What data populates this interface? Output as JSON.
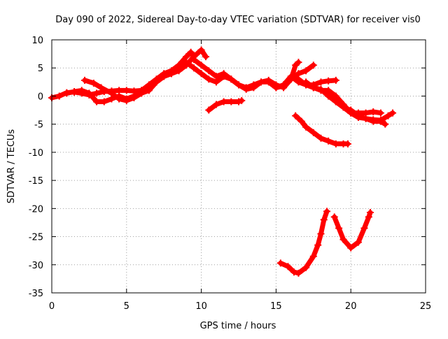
{
  "chart_data": {
    "type": "scatter",
    "title": "Day 090 of 2022, Sidereal Day-to-day VTEC variation (SDTVAR) for receiver vis0",
    "xlabel": "GPS time / hours",
    "ylabel": "SDTVAR / TECUs",
    "xlim": [
      0,
      25
    ],
    "ylim": [
      -35,
      10
    ],
    "x_ticks": [
      0,
      5,
      10,
      15,
      20,
      25
    ],
    "y_ticks": [
      10,
      5,
      0,
      -5,
      -10,
      -15,
      -20,
      -25,
      -30,
      -35
    ],
    "x_tick_labels": [
      "0",
      "5",
      "10",
      "15",
      "20",
      "25"
    ],
    "y_tick_labels": [
      "10",
      "5",
      "0",
      "-5",
      "-10",
      "-15",
      "-20",
      "-25",
      "-30",
      "-35"
    ],
    "grid": true,
    "marker": "plus",
    "color": "#ff0000",
    "series": [
      {
        "points": [
          [
            0,
            -0.3
          ],
          [
            0.5,
            0
          ],
          [
            1,
            0.6
          ],
          [
            1.5,
            0.7
          ],
          [
            2,
            0.5
          ],
          [
            2.5,
            0.2
          ],
          [
            3,
            0.5
          ],
          [
            3.5,
            0.8
          ],
          [
            4,
            0.9
          ],
          [
            4.5,
            1
          ],
          [
            5,
            1
          ],
          [
            5.5,
            0.9
          ],
          [
            6,
            1
          ]
        ]
      },
      {
        "points": [
          [
            1,
            0.5
          ],
          [
            1.5,
            0.8
          ],
          [
            2,
            1
          ],
          [
            2.5,
            0.5
          ],
          [
            3,
            -1
          ],
          [
            3.5,
            -1
          ],
          [
            4,
            -0.5
          ],
          [
            4.5,
            0
          ],
          [
            5,
            -0.5
          ],
          [
            5.5,
            0
          ],
          [
            6,
            0.5
          ],
          [
            6.5,
            1
          ],
          [
            7,
            2.5
          ],
          [
            7.5,
            3.5
          ],
          [
            8,
            4
          ],
          [
            8.5,
            4.5
          ],
          [
            9,
            5.5
          ],
          [
            9.5,
            7
          ],
          [
            10,
            8.2
          ],
          [
            10.3,
            7
          ]
        ]
      },
      {
        "points": [
          [
            2.2,
            2.8
          ],
          [
            2.8,
            2.3
          ],
          [
            3.3,
            1.5
          ],
          [
            4,
            0.5
          ],
          [
            4.5,
            -0.5
          ],
          [
            5,
            -0.8
          ],
          [
            5.5,
            -0.3
          ],
          [
            6,
            0.5
          ],
          [
            6.5,
            1.5
          ],
          [
            7,
            2.5
          ],
          [
            7.5,
            3.5
          ],
          [
            8,
            4
          ],
          [
            8.5,
            5.5
          ],
          [
            9,
            7
          ],
          [
            9.3,
            7.8
          ],
          [
            9.5,
            7.2
          ]
        ]
      },
      {
        "points": [
          [
            6,
            1
          ],
          [
            6.5,
            2
          ],
          [
            7,
            3
          ],
          [
            7.5,
            4
          ],
          [
            8,
            4.5
          ],
          [
            8.5,
            5.5
          ],
          [
            9,
            6
          ],
          [
            9.5,
            5
          ],
          [
            10,
            4
          ],
          [
            10.5,
            3
          ],
          [
            11,
            2.5
          ],
          [
            11.5,
            3.5
          ],
          [
            12,
            3
          ],
          [
            12.5,
            2
          ],
          [
            13,
            1.2
          ],
          [
            13.5,
            1.5
          ],
          [
            14,
            2.5
          ],
          [
            14.5,
            2.8
          ],
          [
            15,
            2
          ],
          [
            15.5,
            1.5
          ],
          [
            16,
            3
          ],
          [
            16.3,
            5.5
          ],
          [
            16.5,
            6
          ]
        ]
      },
      {
        "points": [
          [
            9.5,
            6.5
          ],
          [
            10,
            5.5
          ],
          [
            10.5,
            4.5
          ],
          [
            11,
            3.5
          ],
          [
            11.5,
            4
          ],
          [
            12,
            3
          ],
          [
            12.5,
            2
          ],
          [
            13,
            1.5
          ],
          [
            13.5,
            2
          ],
          [
            14,
            2.5
          ],
          [
            14.5,
            2.5
          ],
          [
            15,
            1.5
          ],
          [
            15.5,
            1.8
          ],
          [
            16,
            3
          ],
          [
            16.5,
            4
          ],
          [
            17,
            4.5
          ],
          [
            17.5,
            5.5
          ]
        ]
      },
      {
        "points": [
          [
            10.5,
            -2.5
          ],
          [
            11,
            -1.5
          ],
          [
            11.5,
            -1
          ],
          [
            12,
            -1
          ],
          [
            12.5,
            -1
          ],
          [
            12.7,
            -0.8
          ]
        ]
      },
      {
        "points": [
          [
            15,
            1.5
          ],
          [
            15.5,
            2
          ],
          [
            16,
            3.5
          ],
          [
            16.5,
            2.5
          ],
          [
            17,
            2
          ],
          [
            17.5,
            2
          ],
          [
            18,
            2.5
          ],
          [
            18.5,
            2.7
          ],
          [
            19,
            2.8
          ]
        ]
      },
      {
        "points": [
          [
            16.5,
            3
          ],
          [
            17,
            2
          ],
          [
            17.5,
            1.5
          ],
          [
            18,
            1
          ],
          [
            18.5,
            1
          ],
          [
            19,
            0
          ],
          [
            19.5,
            -1.5
          ],
          [
            20,
            -3
          ],
          [
            20.5,
            -3.8
          ],
          [
            21,
            -4
          ],
          [
            21.5,
            -4.2
          ],
          [
            22,
            -4.3
          ],
          [
            22.5,
            -3.5
          ],
          [
            22.8,
            -3
          ]
        ]
      },
      {
        "points": [
          [
            17,
            2.5
          ],
          [
            17.5,
            1.5
          ],
          [
            18,
            1.2
          ],
          [
            18.5,
            0
          ],
          [
            19,
            -1
          ],
          [
            19.5,
            -2
          ],
          [
            20,
            -3
          ],
          [
            20.5,
            -3
          ],
          [
            21,
            -3
          ],
          [
            21.5,
            -2.8
          ],
          [
            22,
            -3
          ]
        ]
      },
      {
        "points": [
          [
            18.5,
            0.5
          ],
          [
            19,
            -1
          ],
          [
            19.5,
            -2
          ],
          [
            20,
            -2.5
          ],
          [
            20.5,
            -3.5
          ],
          [
            21,
            -4
          ],
          [
            21.5,
            -4.5
          ],
          [
            22,
            -4.5
          ],
          [
            22.3,
            -5
          ]
        ]
      },
      {
        "points": [
          [
            16.3,
            -3.5
          ],
          [
            16.7,
            -4.5
          ],
          [
            17,
            -5.5
          ],
          [
            17.5,
            -6.5
          ],
          [
            18,
            -7.5
          ],
          [
            18.5,
            -8
          ],
          [
            19,
            -8.5
          ],
          [
            19.5,
            -8.5
          ],
          [
            19.8,
            -8.5
          ]
        ]
      },
      {
        "points": [
          [
            15.3,
            -29.7
          ],
          [
            15.8,
            -30.3
          ],
          [
            16.2,
            -31.3
          ],
          [
            16.5,
            -31.5
          ],
          [
            17,
            -30.5
          ],
          [
            17.5,
            -28.5
          ],
          [
            17.8,
            -26.5
          ],
          [
            18,
            -24.5
          ],
          [
            18.2,
            -22
          ],
          [
            18.4,
            -20.5
          ]
        ]
      },
      {
        "points": [
          [
            18.9,
            -21.5
          ],
          [
            19.2,
            -23.5
          ],
          [
            19.5,
            -25.5
          ],
          [
            20,
            -27
          ],
          [
            20.5,
            -26
          ],
          [
            20.9,
            -23.5
          ],
          [
            21.2,
            -21.5
          ],
          [
            21.3,
            -20.7
          ]
        ]
      }
    ]
  }
}
